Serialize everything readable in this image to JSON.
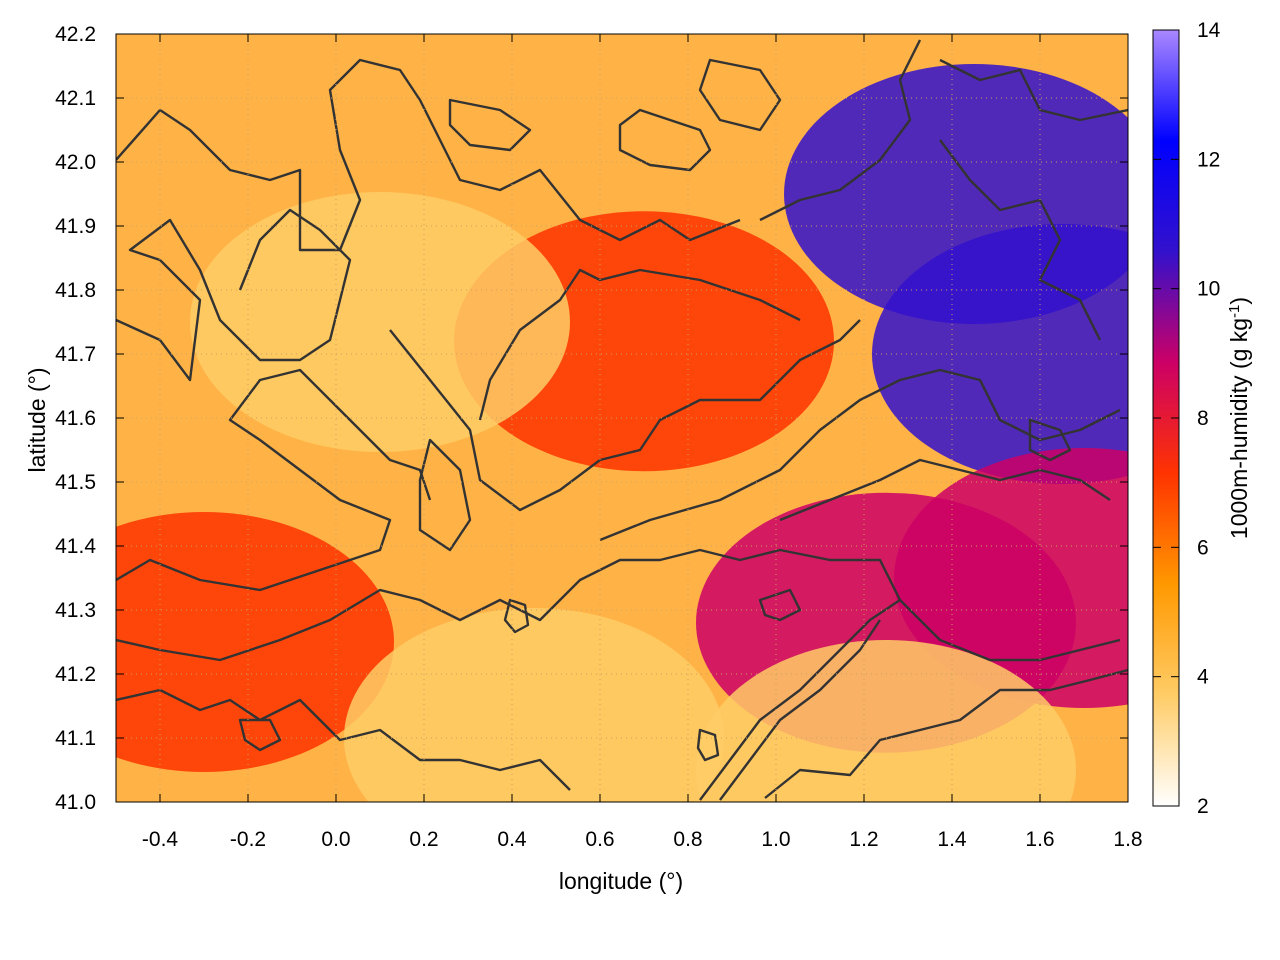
{
  "chart_data": {
    "type": "heatmap",
    "xlabel": "longitude (°)",
    "ylabel": "latitude (°)",
    "colorbar_label": "1000m-humidity (g kg",
    "colorbar_label_sup": "-1",
    "colorbar_label_end": ")",
    "xlim": [
      -0.5,
      1.8
    ],
    "ylim": [
      41.0,
      42.2
    ],
    "clim": [
      2,
      14
    ],
    "x_ticks": [
      -0.4,
      -0.2,
      0.0,
      0.2,
      0.4,
      0.6,
      0.8,
      1.0,
      1.2,
      1.4,
      1.6,
      1.8
    ],
    "x_tick_labels": [
      "-0.4",
      "-0.2",
      "0.0",
      "0.2",
      "0.4",
      "0.6",
      "0.8",
      "1.0",
      "1.2",
      "1.4",
      "1.6",
      "1.8"
    ],
    "y_ticks": [
      41.0,
      41.1,
      41.2,
      41.3,
      41.4,
      41.5,
      41.6,
      41.7,
      41.8,
      41.9,
      42.0,
      42.1,
      42.2
    ],
    "y_tick_labels": [
      "41.0",
      "41.1",
      "41.2",
      "41.3",
      "41.4",
      "41.5",
      "41.6",
      "41.7",
      "41.8",
      "41.9",
      "42.0",
      "42.1",
      "42.2"
    ],
    "colorbar_ticks": [
      2,
      4,
      6,
      8,
      10,
      12,
      14
    ],
    "colorbar_tick_labels": [
      "2",
      "4",
      "6",
      "8",
      "10",
      "12",
      "14"
    ],
    "grid": true,
    "colormap": [
      "#ffffff",
      "#ffcc66",
      "#ff9900",
      "#ff3300",
      "#cc0066",
      "#3311cc",
      "#0000ff",
      "#aa88ff"
    ],
    "contour_color": "#333333",
    "field_centers": [
      {
        "x": -0.3,
        "y": 41.25,
        "v": 7.5
      },
      {
        "x": 0.7,
        "y": 41.72,
        "v": 7.8
      },
      {
        "x": 1.45,
        "y": 41.95,
        "v": 10.5
      },
      {
        "x": 1.65,
        "y": 41.7,
        "v": 10.2
      },
      {
        "x": 1.7,
        "y": 41.35,
        "v": 9.0
      },
      {
        "x": 1.25,
        "y": 41.28,
        "v": 8.2
      },
      {
        "x": 0.1,
        "y": 41.75,
        "v": 4.2
      },
      {
        "x": 1.25,
        "y": 41.05,
        "v": 3.5
      },
      {
        "x": 0.45,
        "y": 41.1,
        "v": 3.8
      }
    ]
  }
}
